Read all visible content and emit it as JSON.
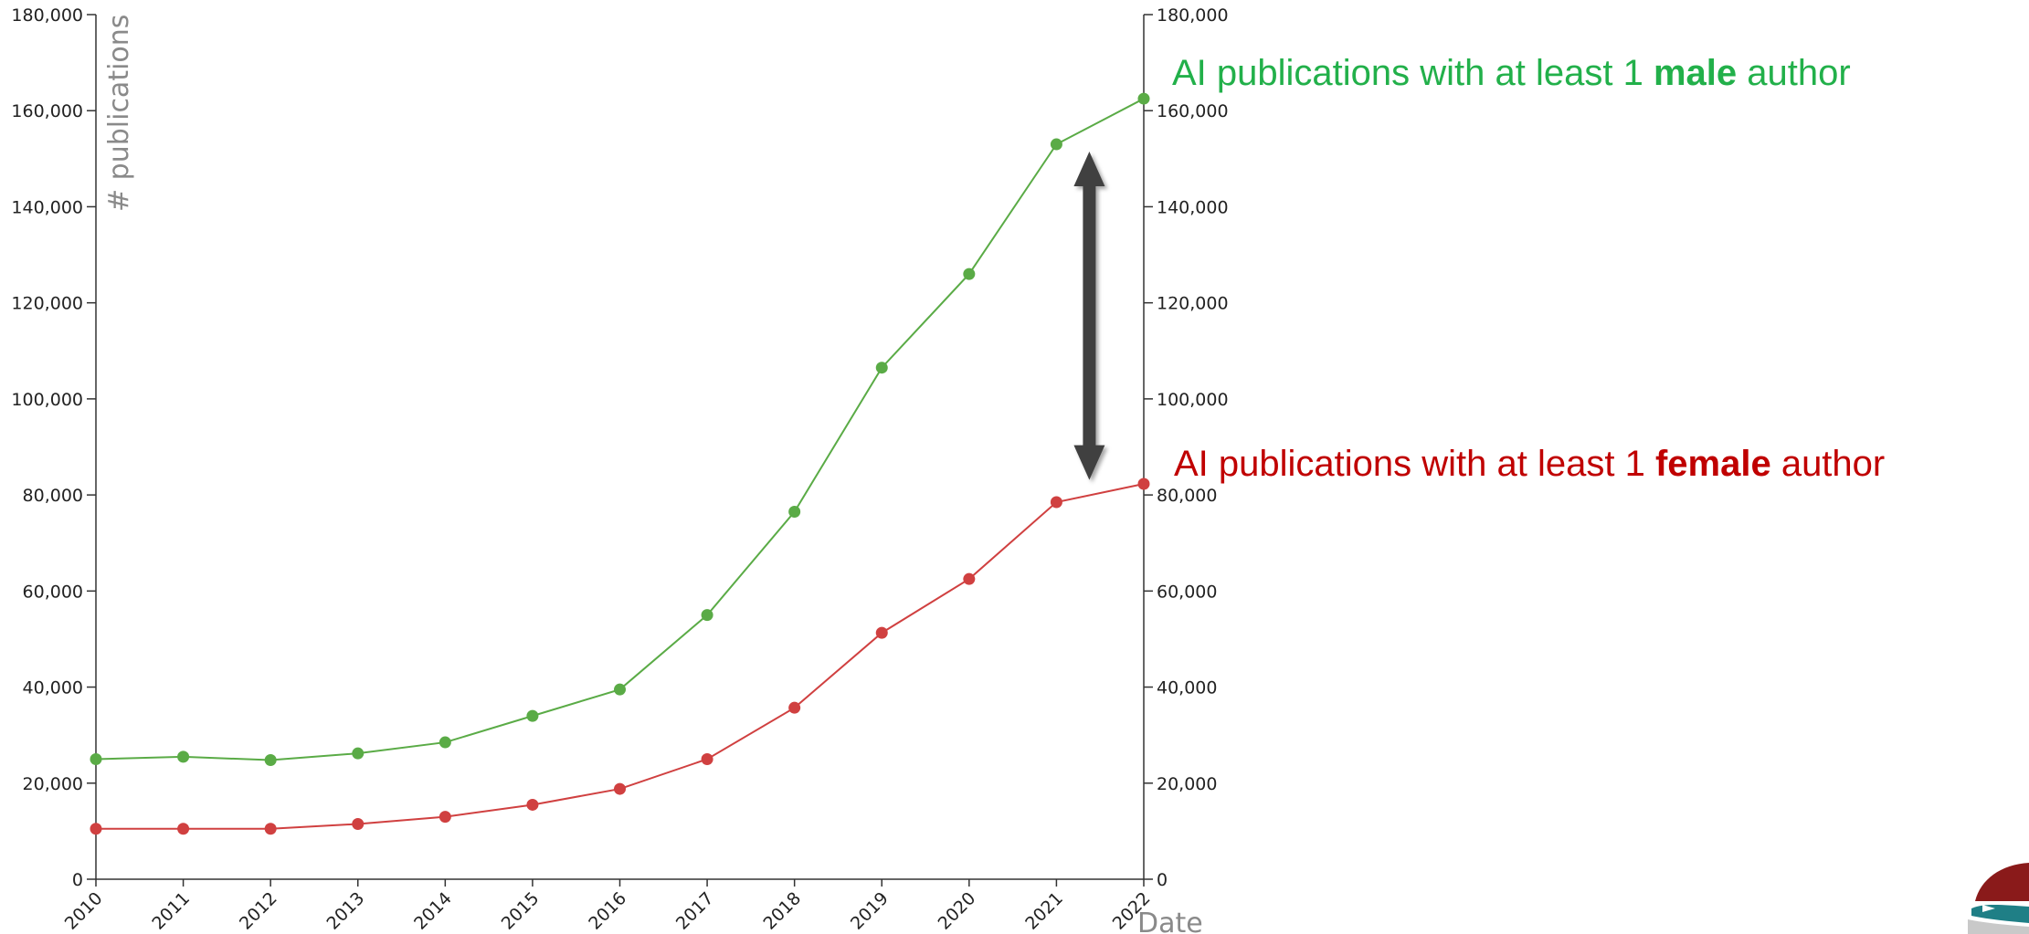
{
  "chart_data": {
    "type": "line",
    "xlabel": "Date",
    "ylabel": "# publications",
    "x": [
      "2010",
      "2011",
      "2012",
      "2013",
      "2014",
      "2015",
      "2016",
      "2017",
      "2018",
      "2019",
      "2020",
      "2021",
      "2022"
    ],
    "ylim": [
      0,
      180000
    ],
    "yticks": [
      "0",
      "20,000",
      "40,000",
      "60,000",
      "80,000",
      "100,000",
      "120,000",
      "140,000",
      "160,000",
      "180,000"
    ],
    "ytick_values": [
      0,
      20000,
      40000,
      60000,
      80000,
      100000,
      120000,
      140000,
      160000,
      180000
    ],
    "y_axes": "left and right (mirrored)",
    "grid": false,
    "series": [
      {
        "color": "#5aab46",
        "values": [
          25000,
          25500,
          24800,
          26200,
          28500,
          34000,
          39500,
          55000,
          76500,
          106500,
          126000,
          153000,
          162500
        ]
      },
      {
        "color": "#d04040",
        "values": [
          10500,
          10500,
          10500,
          11500,
          13000,
          15500,
          18800,
          25000,
          35700,
          51300,
          62500,
          78500,
          82300
        ]
      }
    ],
    "annotations": {
      "male": {
        "prefix": "AI publications with at least 1 ",
        "bold": "male",
        "suffix": " author",
        "color": "#22b04a"
      },
      "female": {
        "prefix": "AI publications with at least 1 ",
        "bold": "female",
        "suffix": " author",
        "color": "#c00000"
      }
    },
    "gap_arrow": {
      "from_year": "2021",
      "from_value": 153000,
      "to_value": 82000,
      "color": "#404040"
    }
  },
  "logo": {
    "icon": "institution-logo-icon"
  }
}
